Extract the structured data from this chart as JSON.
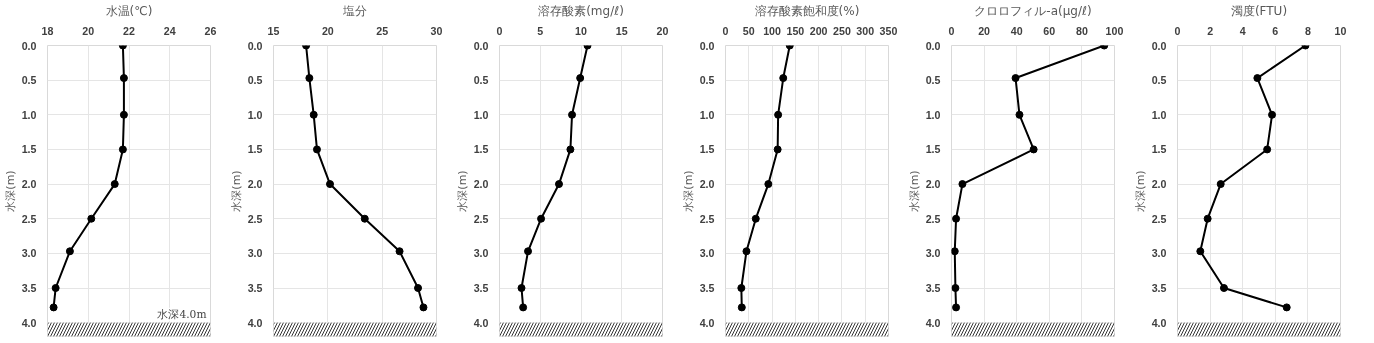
{
  "chart_data": [
    {
      "type": "line",
      "xlabel": "水温(℃)",
      "ylabel": "水深(m)",
      "xlim": [
        18,
        26
      ],
      "xticks": [
        18,
        20,
        22,
        24,
        26
      ],
      "ylim": [
        4.2,
        0
      ],
      "yticks": [
        {
          "value": 0,
          "label": "0.0"
        },
        {
          "value": 0.5,
          "label": "0.5"
        },
        {
          "value": 1,
          "label": "1.0"
        },
        {
          "value": 1.5,
          "label": "1.5"
        },
        {
          "value": 2,
          "label": "2.0"
        },
        {
          "value": 2.5,
          "label": "2.5"
        },
        {
          "value": 3,
          "label": "3.0"
        },
        {
          "value": 3.5,
          "label": "3.5"
        },
        {
          "value": 4,
          "label": "4.0"
        }
      ],
      "grid": true,
      "marker": "circle",
      "line_style": "solid",
      "annotations": [
        "水深4.0m"
      ],
      "bands": [
        {
          "axis": "y",
          "from": 4.0,
          "to": 4.2,
          "color": "#000000"
        }
      ],
      "series": [
        {
          "color": "#000000",
          "x": [
            21.7,
            21.75,
            21.75,
            21.7,
            21.3,
            20.15,
            19.1,
            18.4,
            18.3
          ],
          "values": [
            0,
            0.47,
            1.0,
            1.5,
            2.0,
            2.5,
            2.97,
            3.5,
            3.78
          ]
        }
      ]
    },
    {
      "type": "line",
      "xlabel": "塩分",
      "ylabel": "水深(m)",
      "xlim": [
        15,
        30
      ],
      "xticks": [
        15,
        20,
        25,
        30
      ],
      "ylim": [
        4.2,
        0
      ],
      "yticks": [
        {
          "value": 0,
          "label": "0.0"
        },
        {
          "value": 0.5,
          "label": "0.5"
        },
        {
          "value": 1,
          "label": "1.0"
        },
        {
          "value": 1.5,
          "label": "1.5"
        },
        {
          "value": 2,
          "label": "2.0"
        },
        {
          "value": 2.5,
          "label": "2.5"
        },
        {
          "value": 3,
          "label": "3.0"
        },
        {
          "value": 3.5,
          "label": "3.5"
        },
        {
          "value": 4,
          "label": "4.0"
        }
      ],
      "grid": true,
      "marker": "circle",
      "line_style": "solid",
      "bands": [
        {
          "axis": "y",
          "from": 4.0,
          "to": 4.2,
          "color": "#000000"
        }
      ],
      "series": [
        {
          "color": "#000000",
          "x": [
            18.0,
            18.3,
            18.7,
            19.0,
            20.2,
            23.4,
            26.6,
            28.3,
            28.8
          ],
          "values": [
            0,
            0.47,
            1.0,
            1.5,
            2.0,
            2.5,
            2.97,
            3.5,
            3.78
          ]
        }
      ]
    },
    {
      "type": "line",
      "xlabel": "溶存酸素(mg/ℓ)",
      "ylabel": "水深(m)",
      "xlim": [
        0,
        20
      ],
      "xticks": [
        0,
        5,
        10,
        15,
        20
      ],
      "ylim": [
        4.2,
        0
      ],
      "yticks": [
        {
          "value": 0,
          "label": "0.0"
        },
        {
          "value": 0.5,
          "label": "0.5"
        },
        {
          "value": 1,
          "label": "1.0"
        },
        {
          "value": 1.5,
          "label": "1.5"
        },
        {
          "value": 2,
          "label": "2.0"
        },
        {
          "value": 2.5,
          "label": "2.5"
        },
        {
          "value": 3,
          "label": "3.0"
        },
        {
          "value": 3.5,
          "label": "3.5"
        },
        {
          "value": 4,
          "label": "4.0"
        }
      ],
      "grid": true,
      "marker": "circle",
      "line_style": "solid",
      "bands": [
        {
          "axis": "y",
          "from": 4.0,
          "to": 4.2,
          "color": "#000000"
        }
      ],
      "series": [
        {
          "color": "#000000",
          "x": [
            10.8,
            9.9,
            8.9,
            8.7,
            7.3,
            5.1,
            3.5,
            2.7,
            2.9
          ],
          "values": [
            0,
            0.47,
            1.0,
            1.5,
            2.0,
            2.5,
            2.97,
            3.5,
            3.78
          ]
        }
      ]
    },
    {
      "type": "line",
      "xlabel": "溶存酸素飽和度(%)",
      "ylabel": "水深(m)",
      "xlim": [
        0,
        350
      ],
      "xticks": [
        0,
        50,
        100,
        150,
        200,
        250,
        300,
        350
      ],
      "ylim": [
        4.2,
        0
      ],
      "yticks": [
        {
          "value": 0,
          "label": "0.0"
        },
        {
          "value": 0.5,
          "label": "0.5"
        },
        {
          "value": 1,
          "label": "1.0"
        },
        {
          "value": 1.5,
          "label": "1.5"
        },
        {
          "value": 2,
          "label": "2.0"
        },
        {
          "value": 2.5,
          "label": "2.5"
        },
        {
          "value": 3,
          "label": "3.0"
        },
        {
          "value": 3.5,
          "label": "3.5"
        },
        {
          "value": 4,
          "label": "4.0"
        }
      ],
      "grid": true,
      "marker": "circle",
      "line_style": "solid",
      "bands": [
        {
          "axis": "y",
          "from": 4.0,
          "to": 4.2,
          "color": "#000000"
        }
      ],
      "series": [
        {
          "color": "#000000",
          "x": [
            138,
            124,
            113,
            112,
            92,
            65,
            45,
            34,
            35
          ],
          "values": [
            0,
            0.47,
            1.0,
            1.5,
            2.0,
            2.5,
            2.97,
            3.5,
            3.78
          ]
        }
      ]
    },
    {
      "type": "line",
      "xlabel": "クロロフィル-a(μg/ℓ)",
      "ylabel": "水深(m)",
      "xlim": [
        0,
        100
      ],
      "xticks": [
        0,
        20,
        40,
        60,
        80,
        100
      ],
      "ylim": [
        4.2,
        0
      ],
      "yticks": [
        {
          "value": 0,
          "label": "0.0"
        },
        {
          "value": 0.5,
          "label": "0.5"
        },
        {
          "value": 1,
          "label": "1.0"
        },
        {
          "value": 1.5,
          "label": "1.5"
        },
        {
          "value": 2,
          "label": "2.0"
        },
        {
          "value": 2.5,
          "label": "2.5"
        },
        {
          "value": 3,
          "label": "3.0"
        },
        {
          "value": 3.5,
          "label": "3.5"
        },
        {
          "value": 4,
          "label": "4.0"
        }
      ],
      "grid": true,
      "marker": "circle",
      "line_style": "solid",
      "bands": [
        {
          "axis": "y",
          "from": 4.0,
          "to": 4.2,
          "color": "#000000"
        }
      ],
      "series": [
        {
          "color": "#000000",
          "x": [
            93.7,
            39.3,
            41.7,
            50.4,
            6.7,
            2.8,
            2.0,
            2.4,
            2.8
          ],
          "values": [
            0,
            0.47,
            1.0,
            1.5,
            2.0,
            2.5,
            2.97,
            3.5,
            3.78
          ]
        }
      ]
    },
    {
      "type": "line",
      "xlabel": "濁度(FTU)",
      "ylabel": "水深(m)",
      "xlim": [
        0,
        10
      ],
      "xticks": [
        0,
        2,
        4,
        6,
        8,
        10
      ],
      "ylim": [
        4.2,
        0
      ],
      "yticks": [
        {
          "value": 0,
          "label": "0.0"
        },
        {
          "value": 0.5,
          "label": "0.5"
        },
        {
          "value": 1,
          "label": "1.0"
        },
        {
          "value": 1.5,
          "label": "1.5"
        },
        {
          "value": 2,
          "label": "2.0"
        },
        {
          "value": 2.5,
          "label": "2.5"
        },
        {
          "value": 3,
          "label": "3.0"
        },
        {
          "value": 3.5,
          "label": "3.5"
        },
        {
          "value": 4,
          "label": "4.0"
        }
      ],
      "grid": true,
      "marker": "circle",
      "line_style": "solid",
      "bands": [
        {
          "axis": "y",
          "from": 4.0,
          "to": 4.2,
          "color": "#000000"
        }
      ],
      "series": [
        {
          "color": "#000000",
          "x": [
            7.85,
            4.9,
            5.8,
            5.5,
            2.65,
            1.85,
            1.4,
            2.85,
            6.7
          ],
          "values": [
            0,
            0.47,
            1.0,
            1.5,
            2.0,
            2.5,
            2.97,
            3.5,
            3.78
          ]
        }
      ]
    }
  ]
}
